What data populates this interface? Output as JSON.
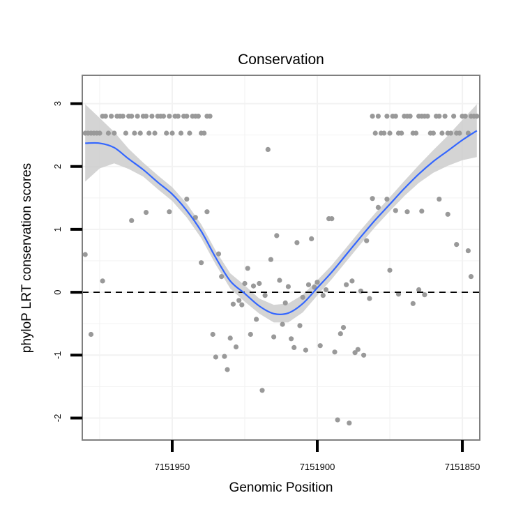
{
  "chart_data": {
    "type": "scatter",
    "title": "Conservation",
    "xlabel": "Genomic Position",
    "ylabel": "phyloP LRT conservation scores",
    "xlim": [
      7151981,
      7151844
    ],
    "ylim": [
      -2.35,
      3.45
    ],
    "x_reversed": true,
    "x_ticks": [
      7151950,
      7151900,
      7151850
    ],
    "x_tick_labels": [
      "7151950",
      "7151900",
      "7151850"
    ],
    "y_ticks": [
      -2,
      -1,
      0,
      1,
      2,
      3
    ],
    "y_tick_labels": [
      "-2",
      "-1",
      "0",
      "1",
      "2",
      "3"
    ],
    "reference_line": {
      "y": 0,
      "style": "dashed"
    },
    "grid": true,
    "colors": {
      "points": "#999999",
      "smooth_line": "#3366ff",
      "confidence_band": "#cccccc",
      "panel_border": "#7f7f7f",
      "grid": "#f2f2f2"
    },
    "points": [
      {
        "x": 7151980,
        "y": 2.53
      },
      {
        "x": 7151979,
        "y": 2.53
      },
      {
        "x": 7151978,
        "y": 2.53
      },
      {
        "x": 7151977,
        "y": 2.53
      },
      {
        "x": 7151976,
        "y": 2.53
      },
      {
        "x": 7151975,
        "y": 2.53
      },
      {
        "x": 7151974,
        "y": 2.8
      },
      {
        "x": 7151973,
        "y": 2.8
      },
      {
        "x": 7151972,
        "y": 2.53
      },
      {
        "x": 7151971,
        "y": 2.8
      },
      {
        "x": 7151970,
        "y": 2.53
      },
      {
        "x": 7151969,
        "y": 2.8
      },
      {
        "x": 7151968,
        "y": 2.8
      },
      {
        "x": 7151967,
        "y": 2.8
      },
      {
        "x": 7151966,
        "y": 2.53
      },
      {
        "x": 7151965,
        "y": 2.8
      },
      {
        "x": 7151964,
        "y": 2.8
      },
      {
        "x": 7151963,
        "y": 2.53
      },
      {
        "x": 7151962,
        "y": 2.8
      },
      {
        "x": 7151961,
        "y": 2.53
      },
      {
        "x": 7151960,
        "y": 2.8
      },
      {
        "x": 7151959,
        "y": 2.8
      },
      {
        "x": 7151958,
        "y": 2.53
      },
      {
        "x": 7151957,
        "y": 2.8
      },
      {
        "x": 7151956,
        "y": 2.53
      },
      {
        "x": 7151955,
        "y": 2.8
      },
      {
        "x": 7151954,
        "y": 2.8
      },
      {
        "x": 7151953,
        "y": 2.8
      },
      {
        "x": 7151952,
        "y": 2.53
      },
      {
        "x": 7151951,
        "y": 2.8
      },
      {
        "x": 7151950,
        "y": 2.53
      },
      {
        "x": 7151949,
        "y": 2.8
      },
      {
        "x": 7151948,
        "y": 2.8
      },
      {
        "x": 7151947,
        "y": 2.53
      },
      {
        "x": 7151946,
        "y": 2.8
      },
      {
        "x": 7151945,
        "y": 2.8
      },
      {
        "x": 7151944,
        "y": 2.53
      },
      {
        "x": 7151943,
        "y": 2.8
      },
      {
        "x": 7151942,
        "y": 2.8
      },
      {
        "x": 7151941,
        "y": 2.8
      },
      {
        "x": 7151940,
        "y": 2.53
      },
      {
        "x": 7151939,
        "y": 2.53
      },
      {
        "x": 7151938,
        "y": 2.8
      },
      {
        "x": 7151937,
        "y": 2.8
      },
      {
        "x": 7151980,
        "y": 0.6
      },
      {
        "x": 7151978,
        "y": -0.67
      },
      {
        "x": 7151974,
        "y": 0.18
      },
      {
        "x": 7151964,
        "y": 1.14
      },
      {
        "x": 7151959,
        "y": 1.27
      },
      {
        "x": 7151951,
        "y": 1.28
      },
      {
        "x": 7151945,
        "y": 1.48
      },
      {
        "x": 7151942,
        "y": 1.19
      },
      {
        "x": 7151940,
        "y": 0.47
      },
      {
        "x": 7151938,
        "y": 1.28
      },
      {
        "x": 7151936,
        "y": -0.67
      },
      {
        "x": 7151935,
        "y": -1.03
      },
      {
        "x": 7151934,
        "y": 0.61
      },
      {
        "x": 7151933,
        "y": 0.25
      },
      {
        "x": 7151932,
        "y": -1.02
      },
      {
        "x": 7151931,
        "y": -1.23
      },
      {
        "x": 7151930,
        "y": -0.73
      },
      {
        "x": 7151929,
        "y": -0.19
      },
      {
        "x": 7151928,
        "y": -0.87
      },
      {
        "x": 7151927,
        "y": -0.13
      },
      {
        "x": 7151926,
        "y": -0.2
      },
      {
        "x": 7151925,
        "y": 0.14
      },
      {
        "x": 7151924,
        "y": 0.38
      },
      {
        "x": 7151923,
        "y": -0.67
      },
      {
        "x": 7151922,
        "y": 0.1
      },
      {
        "x": 7151921,
        "y": -0.43
      },
      {
        "x": 7151920,
        "y": 0.14
      },
      {
        "x": 7151919,
        "y": -1.56
      },
      {
        "x": 7151918,
        "y": -0.05
      },
      {
        "x": 7151917,
        "y": 2.27
      },
      {
        "x": 7151916,
        "y": 0.52
      },
      {
        "x": 7151915,
        "y": -0.71
      },
      {
        "x": 7151914,
        "y": 0.9
      },
      {
        "x": 7151913,
        "y": 0.19
      },
      {
        "x": 7151912,
        "y": -0.51
      },
      {
        "x": 7151911,
        "y": -0.17
      },
      {
        "x": 7151910,
        "y": 0.09
      },
      {
        "x": 7151909,
        "y": -0.74
      },
      {
        "x": 7151908,
        "y": -0.88
      },
      {
        "x": 7151907,
        "y": 0.79
      },
      {
        "x": 7151906,
        "y": -0.53
      },
      {
        "x": 7151905,
        "y": -0.08
      },
      {
        "x": 7151904,
        "y": -0.92
      },
      {
        "x": 7151903,
        "y": 0.12
      },
      {
        "x": 7151902,
        "y": 0.85
      },
      {
        "x": 7151901,
        "y": 0.08
      },
      {
        "x": 7151900,
        "y": 0.16
      },
      {
        "x": 7151899,
        "y": -0.85
      },
      {
        "x": 7151898,
        "y": -0.05
      },
      {
        "x": 7151897,
        "y": 0.04
      },
      {
        "x": 7151896,
        "y": 1.17
      },
      {
        "x": 7151895,
        "y": 1.17
      },
      {
        "x": 7151894,
        "y": -0.95
      },
      {
        "x": 7151893,
        "y": -2.03
      },
      {
        "x": 7151892,
        "y": -0.66
      },
      {
        "x": 7151891,
        "y": -0.56
      },
      {
        "x": 7151890,
        "y": 0.12
      },
      {
        "x": 7151889,
        "y": -2.08
      },
      {
        "x": 7151888,
        "y": 0.18
      },
      {
        "x": 7151887,
        "y": -0.96
      },
      {
        "x": 7151886,
        "y": -0.91
      },
      {
        "x": 7151885,
        "y": 0.02
      },
      {
        "x": 7151884,
        "y": -1.0
      },
      {
        "x": 7151883,
        "y": 0.82
      },
      {
        "x": 7151882,
        "y": -0.1
      },
      {
        "x": 7151881,
        "y": 1.49
      },
      {
        "x": 7151879,
        "y": 1.35
      },
      {
        "x": 7151876,
        "y": 1.48
      },
      {
        "x": 7151875,
        "y": 0.35
      },
      {
        "x": 7151873,
        "y": 1.3
      },
      {
        "x": 7151872,
        "y": -0.03
      },
      {
        "x": 7151869,
        "y": 1.28
      },
      {
        "x": 7151867,
        "y": -0.18
      },
      {
        "x": 7151865,
        "y": 0.04
      },
      {
        "x": 7151864,
        "y": 1.29
      },
      {
        "x": 7151863,
        "y": -0.04
      },
      {
        "x": 7151858,
        "y": 1.48
      },
      {
        "x": 7151855,
        "y": 1.24
      },
      {
        "x": 7151852,
        "y": 0.76
      },
      {
        "x": 7151848,
        "y": 0.66
      },
      {
        "x": 7151847,
        "y": 0.25
      },
      {
        "x": 7151881,
        "y": 2.8
      },
      {
        "x": 7151880,
        "y": 2.53
      },
      {
        "x": 7151879,
        "y": 2.8
      },
      {
        "x": 7151878,
        "y": 2.53
      },
      {
        "x": 7151877,
        "y": 2.53
      },
      {
        "x": 7151876,
        "y": 2.8
      },
      {
        "x": 7151875,
        "y": 2.53
      },
      {
        "x": 7151874,
        "y": 2.8
      },
      {
        "x": 7151873,
        "y": 2.8
      },
      {
        "x": 7151872,
        "y": 2.53
      },
      {
        "x": 7151871,
        "y": 2.53
      },
      {
        "x": 7151870,
        "y": 2.8
      },
      {
        "x": 7151869,
        "y": 2.8
      },
      {
        "x": 7151868,
        "y": 2.8
      },
      {
        "x": 7151867,
        "y": 2.53
      },
      {
        "x": 7151866,
        "y": 2.53
      },
      {
        "x": 7151865,
        "y": 2.8
      },
      {
        "x": 7151864,
        "y": 2.8
      },
      {
        "x": 7151863,
        "y": 2.8
      },
      {
        "x": 7151862,
        "y": 2.8
      },
      {
        "x": 7151861,
        "y": 2.53
      },
      {
        "x": 7151860,
        "y": 2.53
      },
      {
        "x": 7151859,
        "y": 2.8
      },
      {
        "x": 7151858,
        "y": 2.8
      },
      {
        "x": 7151857,
        "y": 2.53
      },
      {
        "x": 7151856,
        "y": 2.8
      },
      {
        "x": 7151855,
        "y": 2.53
      },
      {
        "x": 7151854,
        "y": 2.53
      },
      {
        "x": 7151853,
        "y": 2.8
      },
      {
        "x": 7151852,
        "y": 2.53
      },
      {
        "x": 7151851,
        "y": 2.53
      },
      {
        "x": 7151850,
        "y": 2.8
      },
      {
        "x": 7151849,
        "y": 2.8
      },
      {
        "x": 7151848,
        "y": 2.53
      },
      {
        "x": 7151847,
        "y": 2.8
      },
      {
        "x": 7151846,
        "y": 2.8
      },
      {
        "x": 7151845,
        "y": 2.8
      }
    ],
    "smooth": {
      "x": [
        7151980,
        7151975,
        7151970,
        7151965,
        7151960,
        7151955,
        7151950,
        7151945,
        7151940,
        7151935,
        7151930,
        7151925,
        7151920,
        7151915,
        7151910,
        7151905,
        7151900,
        7151895,
        7151890,
        7151885,
        7151880,
        7151875,
        7151870,
        7151865,
        7151860,
        7151855,
        7151850,
        7151845
      ],
      "y": [
        2.37,
        2.37,
        2.3,
        2.12,
        1.95,
        1.75,
        1.56,
        1.3,
        0.97,
        0.55,
        0.18,
        -0.02,
        -0.22,
        -0.34,
        -0.33,
        -0.18,
        0.07,
        0.32,
        0.6,
        0.88,
        1.15,
        1.4,
        1.65,
        1.88,
        2.08,
        2.25,
        2.42,
        2.57
      ],
      "lower": [
        1.76,
        1.97,
        2.05,
        1.96,
        1.84,
        1.64,
        1.45,
        1.19,
        0.86,
        0.44,
        0.06,
        -0.15,
        -0.34,
        -0.48,
        -0.48,
        -0.32,
        -0.05,
        0.21,
        0.49,
        0.77,
        1.04,
        1.29,
        1.53,
        1.74,
        1.9,
        2.01,
        2.1,
        2.15
      ],
      "upper": [
        2.99,
        2.77,
        2.55,
        2.28,
        2.06,
        1.86,
        1.67,
        1.41,
        1.08,
        0.66,
        0.3,
        0.11,
        -0.1,
        -0.2,
        -0.18,
        -0.04,
        0.19,
        0.43,
        0.71,
        0.99,
        1.26,
        1.51,
        1.77,
        2.02,
        2.26,
        2.49,
        2.74,
        2.99
      ]
    }
  }
}
